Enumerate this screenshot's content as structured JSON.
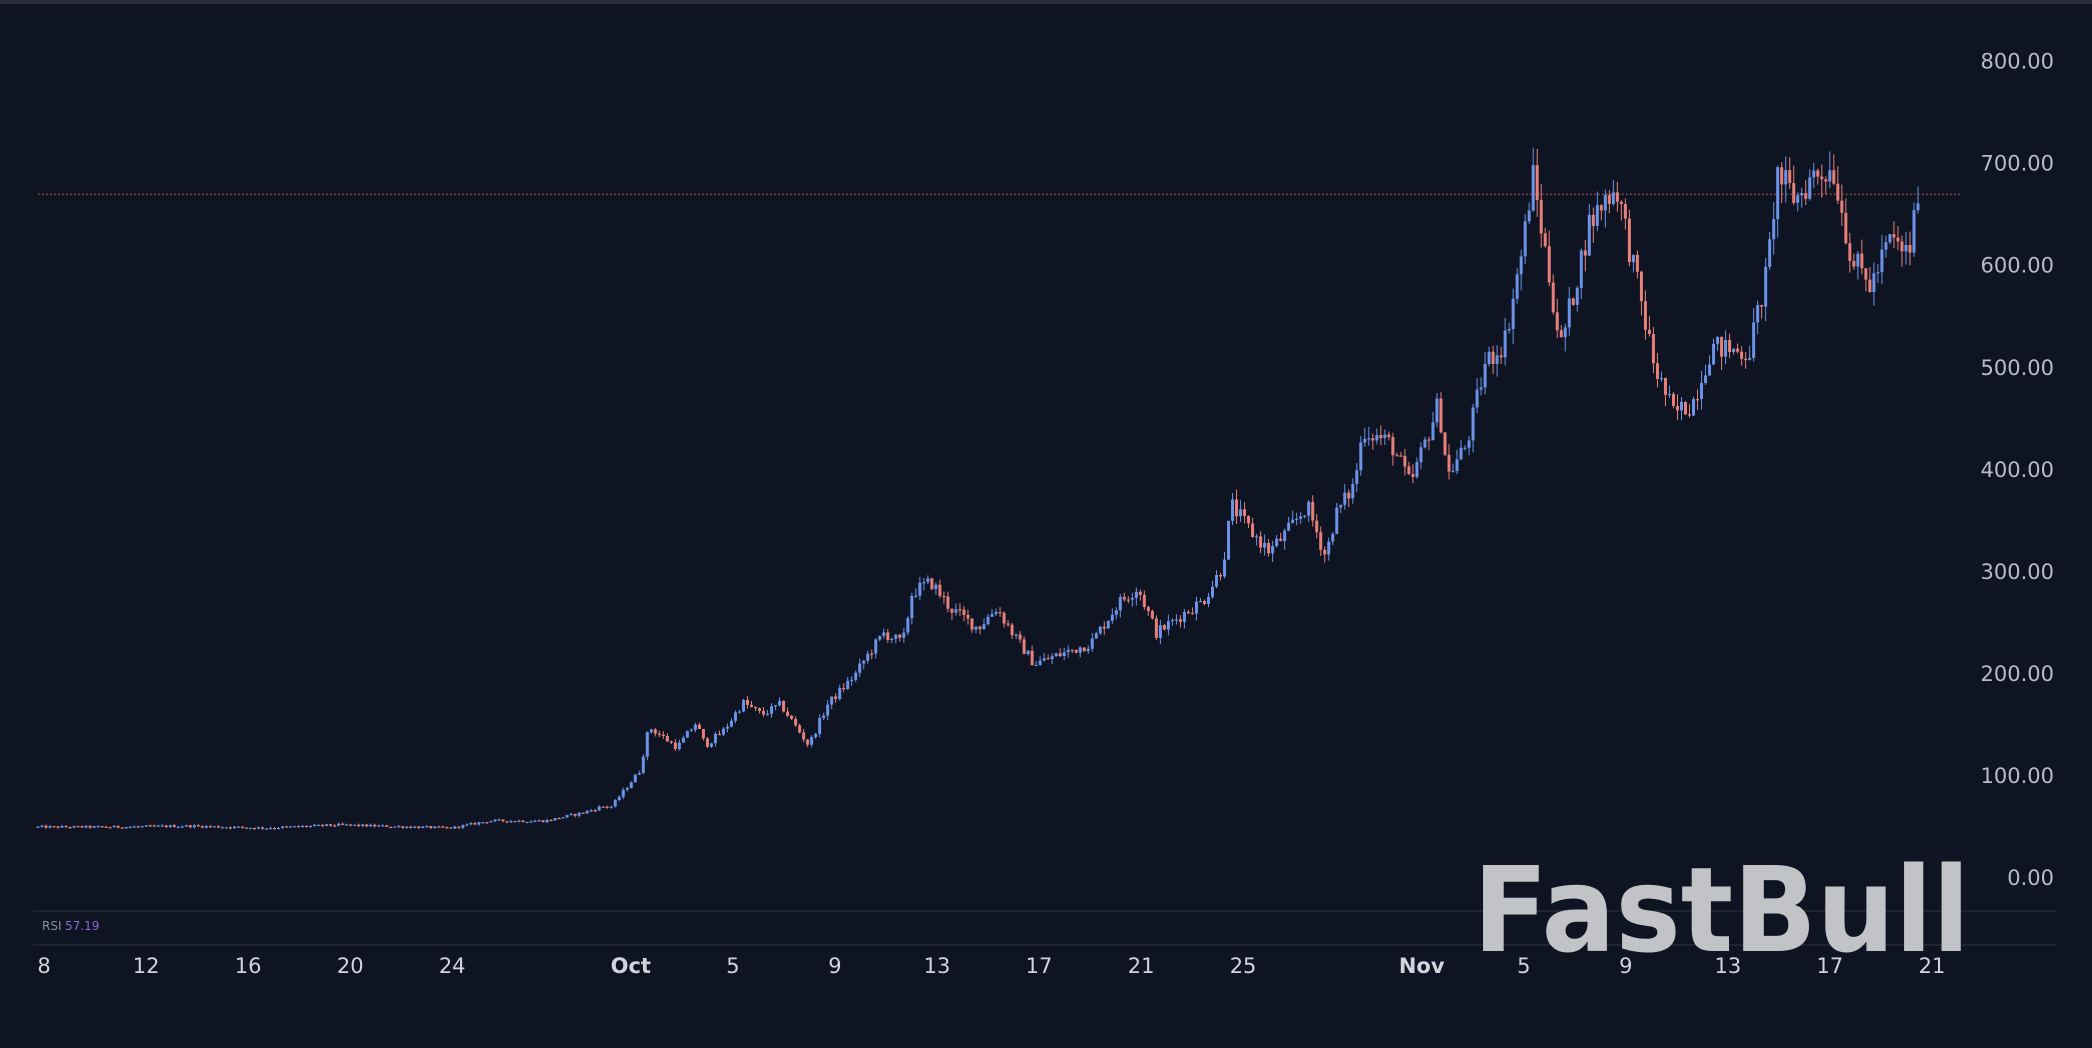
{
  "chart_data": {
    "type": "candlestick",
    "ylim": [
      0,
      850
    ],
    "y_ticks": [
      "800.00",
      "700.00",
      "600.00",
      "500.00",
      "400.00",
      "300.00",
      "200.00",
      "100.00",
      "0.00"
    ],
    "y_tick_values": [
      800,
      700,
      600,
      500,
      400,
      300,
      200,
      100,
      0
    ],
    "x_ticks": [
      "8",
      "12",
      "16",
      "20",
      "24",
      "Oct",
      "5",
      "9",
      "13",
      "17",
      "21",
      "25",
      "Nov",
      "5",
      "9",
      "13",
      "17",
      "21"
    ],
    "x_tick_bold": [
      false,
      false,
      false,
      false,
      false,
      true,
      false,
      false,
      false,
      false,
      false,
      false,
      true,
      false,
      false,
      false,
      false,
      false
    ],
    "x_tick_positions": [
      0.0,
      0.0541,
      0.1081,
      0.1622,
      0.2162,
      0.3108,
      0.3649,
      0.4189,
      0.473,
      0.527,
      0.5811,
      0.6351,
      0.7297,
      0.7838,
      0.8378,
      0.8919,
      0.9459,
      1.0
    ],
    "last_price": 670,
    "indicator": {
      "label": "RSI",
      "value": "57.19"
    },
    "colors": {
      "up": "#6b93e8",
      "down": "#e8807a",
      "price_line": "#c2574f",
      "axis_text": "#b7bcc8"
    },
    "price_path": [
      [
        0,
        50
      ],
      [
        0.04,
        50
      ],
      [
        0.08,
        51
      ],
      [
        0.12,
        49
      ],
      [
        0.16,
        52
      ],
      [
        0.2,
        50
      ],
      [
        0.22,
        49
      ],
      [
        0.24,
        56
      ],
      [
        0.27,
        56
      ],
      [
        0.29,
        64
      ],
      [
        0.3,
        70
      ],
      [
        0.305,
        70
      ],
      [
        0.32,
        105
      ],
      [
        0.325,
        148
      ],
      [
        0.34,
        128
      ],
      [
        0.35,
        152
      ],
      [
        0.355,
        130
      ],
      [
        0.365,
        145
      ],
      [
        0.375,
        172
      ],
      [
        0.385,
        160
      ],
      [
        0.395,
        170
      ],
      [
        0.41,
        130
      ],
      [
        0.42,
        170
      ],
      [
        0.435,
        200
      ],
      [
        0.44,
        215
      ],
      [
        0.45,
        240
      ],
      [
        0.46,
        230
      ],
      [
        0.465,
        280
      ],
      [
        0.475,
        290
      ],
      [
        0.485,
        265
      ],
      [
        0.5,
        245
      ],
      [
        0.51,
        265
      ],
      [
        0.52,
        235
      ],
      [
        0.53,
        210
      ],
      [
        0.545,
        220
      ],
      [
        0.56,
        230
      ],
      [
        0.575,
        270
      ],
      [
        0.585,
        285
      ],
      [
        0.595,
        240
      ],
      [
        0.61,
        260
      ],
      [
        0.62,
        272
      ],
      [
        0.63,
        305
      ],
      [
        0.635,
        365
      ],
      [
        0.645,
        340
      ],
      [
        0.655,
        320
      ],
      [
        0.665,
        340
      ],
      [
        0.675,
        365
      ],
      [
        0.685,
        315
      ],
      [
        0.69,
        355
      ],
      [
        0.7,
        385
      ],
      [
        0.705,
        440
      ],
      [
        0.72,
        425
      ],
      [
        0.73,
        385
      ],
      [
        0.745,
        465
      ],
      [
        0.75,
        395
      ],
      [
        0.76,
        425
      ],
      [
        0.77,
        505
      ],
      [
        0.78,
        525
      ],
      [
        0.79,
        620
      ],
      [
        0.795,
        690
      ],
      [
        0.81,
        520
      ],
      [
        0.825,
        640
      ],
      [
        0.835,
        670
      ],
      [
        0.84,
        675
      ],
      [
        0.86,
        500
      ],
      [
        0.87,
        455
      ],
      [
        0.88,
        465
      ],
      [
        0.89,
        520
      ],
      [
        0.91,
        515
      ],
      [
        0.92,
        595
      ],
      [
        0.925,
        690
      ],
      [
        0.935,
        665
      ],
      [
        0.945,
        690
      ],
      [
        0.955,
        695
      ],
      [
        0.965,
        605
      ],
      [
        0.975,
        580
      ],
      [
        0.985,
        625
      ],
      [
        0.995,
        610
      ],
      [
        1.0,
        670
      ]
    ]
  },
  "watermark": {
    "text": "FastBull"
  }
}
